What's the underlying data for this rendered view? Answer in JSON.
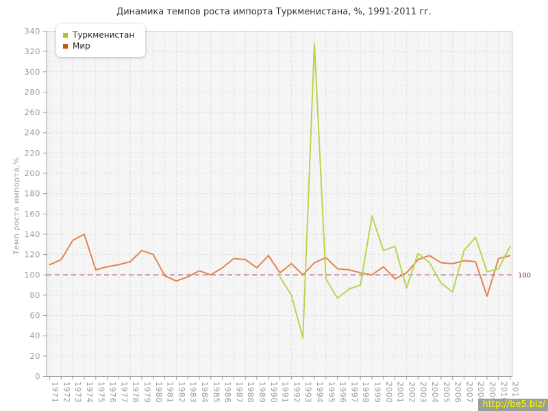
{
  "watermark": {
    "text": "http://be5.biz/"
  },
  "chart_data": {
    "type": "line",
    "title": "Динамика темпов роста импорта Туркменистана, %, 1991-2011 гг.",
    "xlabel": "",
    "ylabel": "Темп роста импорта,%",
    "ylim": [
      0,
      340
    ],
    "ytick_step": 20,
    "grid": true,
    "legend_position": "top-left",
    "x": [
      1971,
      1972,
      1973,
      1974,
      1975,
      1976,
      1977,
      1978,
      1979,
      1980,
      1981,
      1982,
      1983,
      1984,
      1985,
      1986,
      1987,
      1988,
      1989,
      1990,
      1991,
      1992,
      1993,
      1994,
      1995,
      1996,
      1997,
      1998,
      1999,
      2000,
      2001,
      2002,
      2003,
      2004,
      2005,
      2006,
      2007,
      2008,
      2009,
      2010,
      2011
    ],
    "series": [
      {
        "name": "Туркменистан",
        "color": "#b9d44c",
        "marker_color": "#a5c813",
        "values": [
          null,
          null,
          null,
          null,
          null,
          null,
          null,
          null,
          null,
          null,
          null,
          null,
          null,
          null,
          null,
          null,
          null,
          null,
          null,
          null,
          98,
          80,
          38,
          328,
          96,
          77,
          86,
          90,
          158,
          124,
          128,
          87,
          121,
          112,
          92,
          83,
          124,
          137,
          103,
          106,
          128
        ]
      },
      {
        "name": "Мир",
        "color": "#e6824a",
        "marker_color": "#cd5311",
        "values": [
          110,
          115,
          134,
          140,
          105,
          108,
          110,
          113,
          124,
          120,
          99,
          94,
          98,
          104,
          100,
          107,
          116,
          115,
          107,
          119,
          102,
          111,
          100,
          112,
          117,
          106,
          105,
          102,
          100,
          108,
          96,
          102,
          115,
          119,
          112,
          111,
          114,
          113,
          79,
          116,
          119
        ]
      }
    ],
    "ref_line": {
      "value": 100,
      "label": "100",
      "color": "#8e2640"
    }
  }
}
